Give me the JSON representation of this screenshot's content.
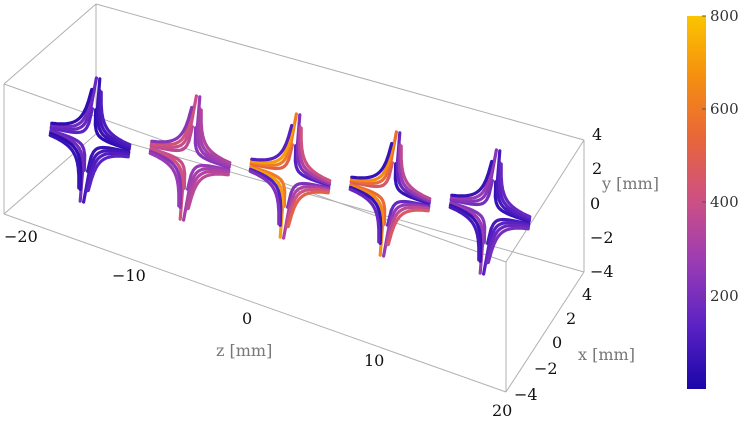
{
  "chart_data": {
    "type": "3d-streamline",
    "axes": {
      "z": {
        "label": "z [mm]",
        "range": [
          -20,
          20
        ],
        "ticks": [
          "−20",
          "−10",
          "0",
          "10",
          "20"
        ]
      },
      "y": {
        "label": "y [mm]",
        "range": [
          -4,
          4
        ],
        "ticks": [
          "4",
          "2",
          "0",
          "−2",
          "−4"
        ]
      },
      "x": {
        "label": "x [mm]",
        "range": [
          -4,
          4
        ],
        "ticks": [
          "4",
          "2",
          "0",
          "−2",
          "−4"
        ]
      }
    },
    "colorbar": {
      "range": [
        0,
        800
      ],
      "ticks": [
        "800",
        "600",
        "400",
        "200"
      ],
      "stops": [
        "#1a06a8",
        "#5b22c4",
        "#9a3cb4",
        "#cc4f86",
        "#e8653a",
        "#f5900f",
        "#fbc400"
      ]
    },
    "slices": [
      {
        "z": -20,
        "magnitude_range": [
          40,
          180
        ]
      },
      {
        "z": -10,
        "magnitude_range": [
          230,
          420
        ]
      },
      {
        "z": 0,
        "magnitude_range": [
          120,
          700
        ]
      },
      {
        "z": 10,
        "magnitude_range": [
          60,
          650
        ]
      },
      {
        "z": 20,
        "magnitude_range": [
          60,
          260
        ]
      }
    ]
  }
}
